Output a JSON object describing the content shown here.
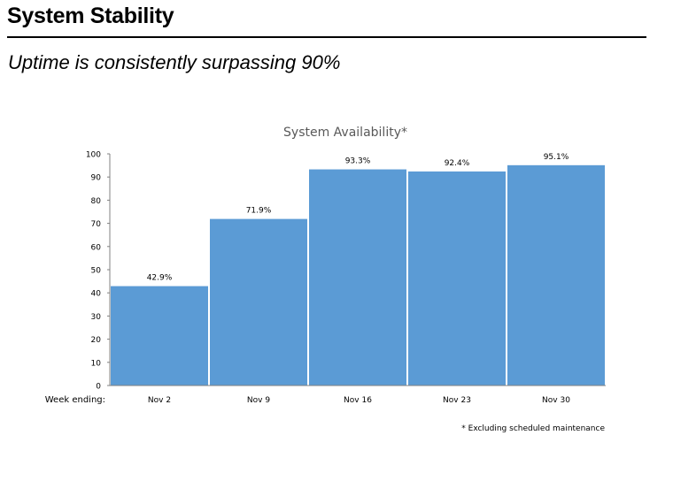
{
  "slide": {
    "title": "System Stability",
    "subtitle": "Uptime is consistently surpassing 90%"
  },
  "chart_data": {
    "type": "bar",
    "title": "System Availability*",
    "xlabel": "Week ending:",
    "ylabel": "",
    "categories": [
      "Nov 2",
      "Nov 9",
      "Nov 16",
      "Nov 23",
      "Nov 30"
    ],
    "values": [
      42.9,
      71.9,
      93.3,
      92.4,
      95.1
    ],
    "data_labels": [
      "42.9%",
      "71.9%",
      "93.3%",
      "92.4%",
      "95.1%"
    ],
    "ylim": [
      0,
      100
    ],
    "yticks": [
      0,
      10,
      20,
      30,
      40,
      50,
      60,
      70,
      80,
      90,
      100
    ],
    "grid": false,
    "legend": "none",
    "footnote": "* Excluding scheduled maintenance",
    "bar_color": "#5b9bd5"
  }
}
